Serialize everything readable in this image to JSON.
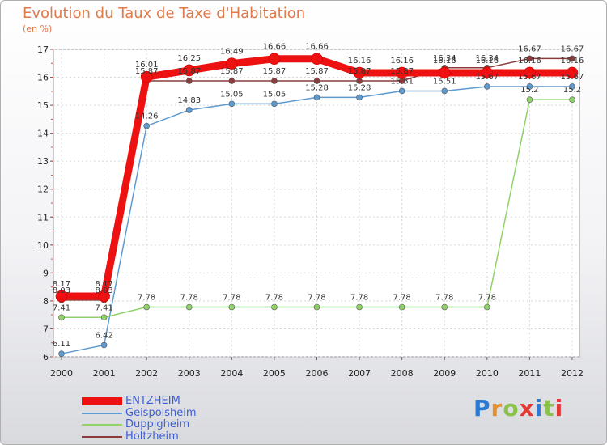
{
  "chart_data": {
    "type": "line",
    "title": "Evolution du Taux de Taxe d'Habitation",
    "subtitle": "(en %)",
    "x": [
      "2000",
      "2001",
      "2002",
      "2003",
      "2004",
      "2005",
      "2006",
      "2007",
      "2008",
      "2009",
      "2010",
      "2011",
      "2012"
    ],
    "ylim": [
      6,
      17
    ],
    "yticks": [
      6,
      7,
      8,
      9,
      10,
      11,
      12,
      13,
      14,
      15,
      16,
      17
    ],
    "series": [
      {
        "name": "ENTZHEIM",
        "color": "#ee1111",
        "values": [
          8.17,
          8.17,
          16.01,
          16.25,
          16.49,
          16.66,
          16.66,
          16.16,
          16.16,
          16.16,
          16.16,
          16.16,
          16.16
        ],
        "labels": [
          "8.17",
          "8.17",
          "16.01",
          "16.25",
          "16.49",
          "16.66",
          "16.66",
          "16.16",
          "16.16",
          "16.16",
          "16.16",
          "16.16",
          "16.16"
        ]
      },
      {
        "name": "Geispolsheim",
        "color": "#5e9ad0",
        "values": [
          6.11,
          6.42,
          14.26,
          14.83,
          15.05,
          15.05,
          15.28,
          15.28,
          15.51,
          15.51,
          15.67,
          15.67,
          15.67
        ],
        "labels": [
          "6.11",
          "6.42",
          "14.26",
          "14.83",
          "15.05",
          "15.05",
          "15.28",
          "15.28",
          "15.51",
          "15.51",
          "15.67",
          "15.67",
          "15.67"
        ]
      },
      {
        "name": "Duppigheim",
        "color": "#8fd26a",
        "values": [
          7.41,
          7.41,
          7.78,
          7.78,
          7.78,
          7.78,
          7.78,
          7.78,
          7.78,
          7.78,
          7.78,
          15.2,
          15.2
        ],
        "labels": [
          "7.41",
          "7.41",
          "7.78",
          "7.78",
          "7.78",
          "7.78",
          "7.78",
          "7.78",
          "7.78",
          "7.78",
          "7.78",
          "15.2",
          "15.2"
        ]
      },
      {
        "name": "Holtzheim",
        "color": "#8a3b3b",
        "values": [
          8.03,
          8.03,
          15.87,
          15.87,
          15.87,
          15.87,
          15.87,
          15.87,
          15.87,
          16.34,
          16.34,
          16.67,
          16.67
        ],
        "labels": [
          "8.03",
          "8.03",
          "15.87",
          "15.87",
          "15.87",
          "15.87",
          "15.87",
          "15.87",
          "15.87",
          "16.34",
          "16.34",
          "16.67",
          "16.67"
        ]
      }
    ]
  },
  "legend": [
    "ENTZHEIM",
    "Geispolsheim",
    "Duppigheim",
    "Holtzheim"
  ],
  "logo": {
    "text": "Proxiti"
  }
}
